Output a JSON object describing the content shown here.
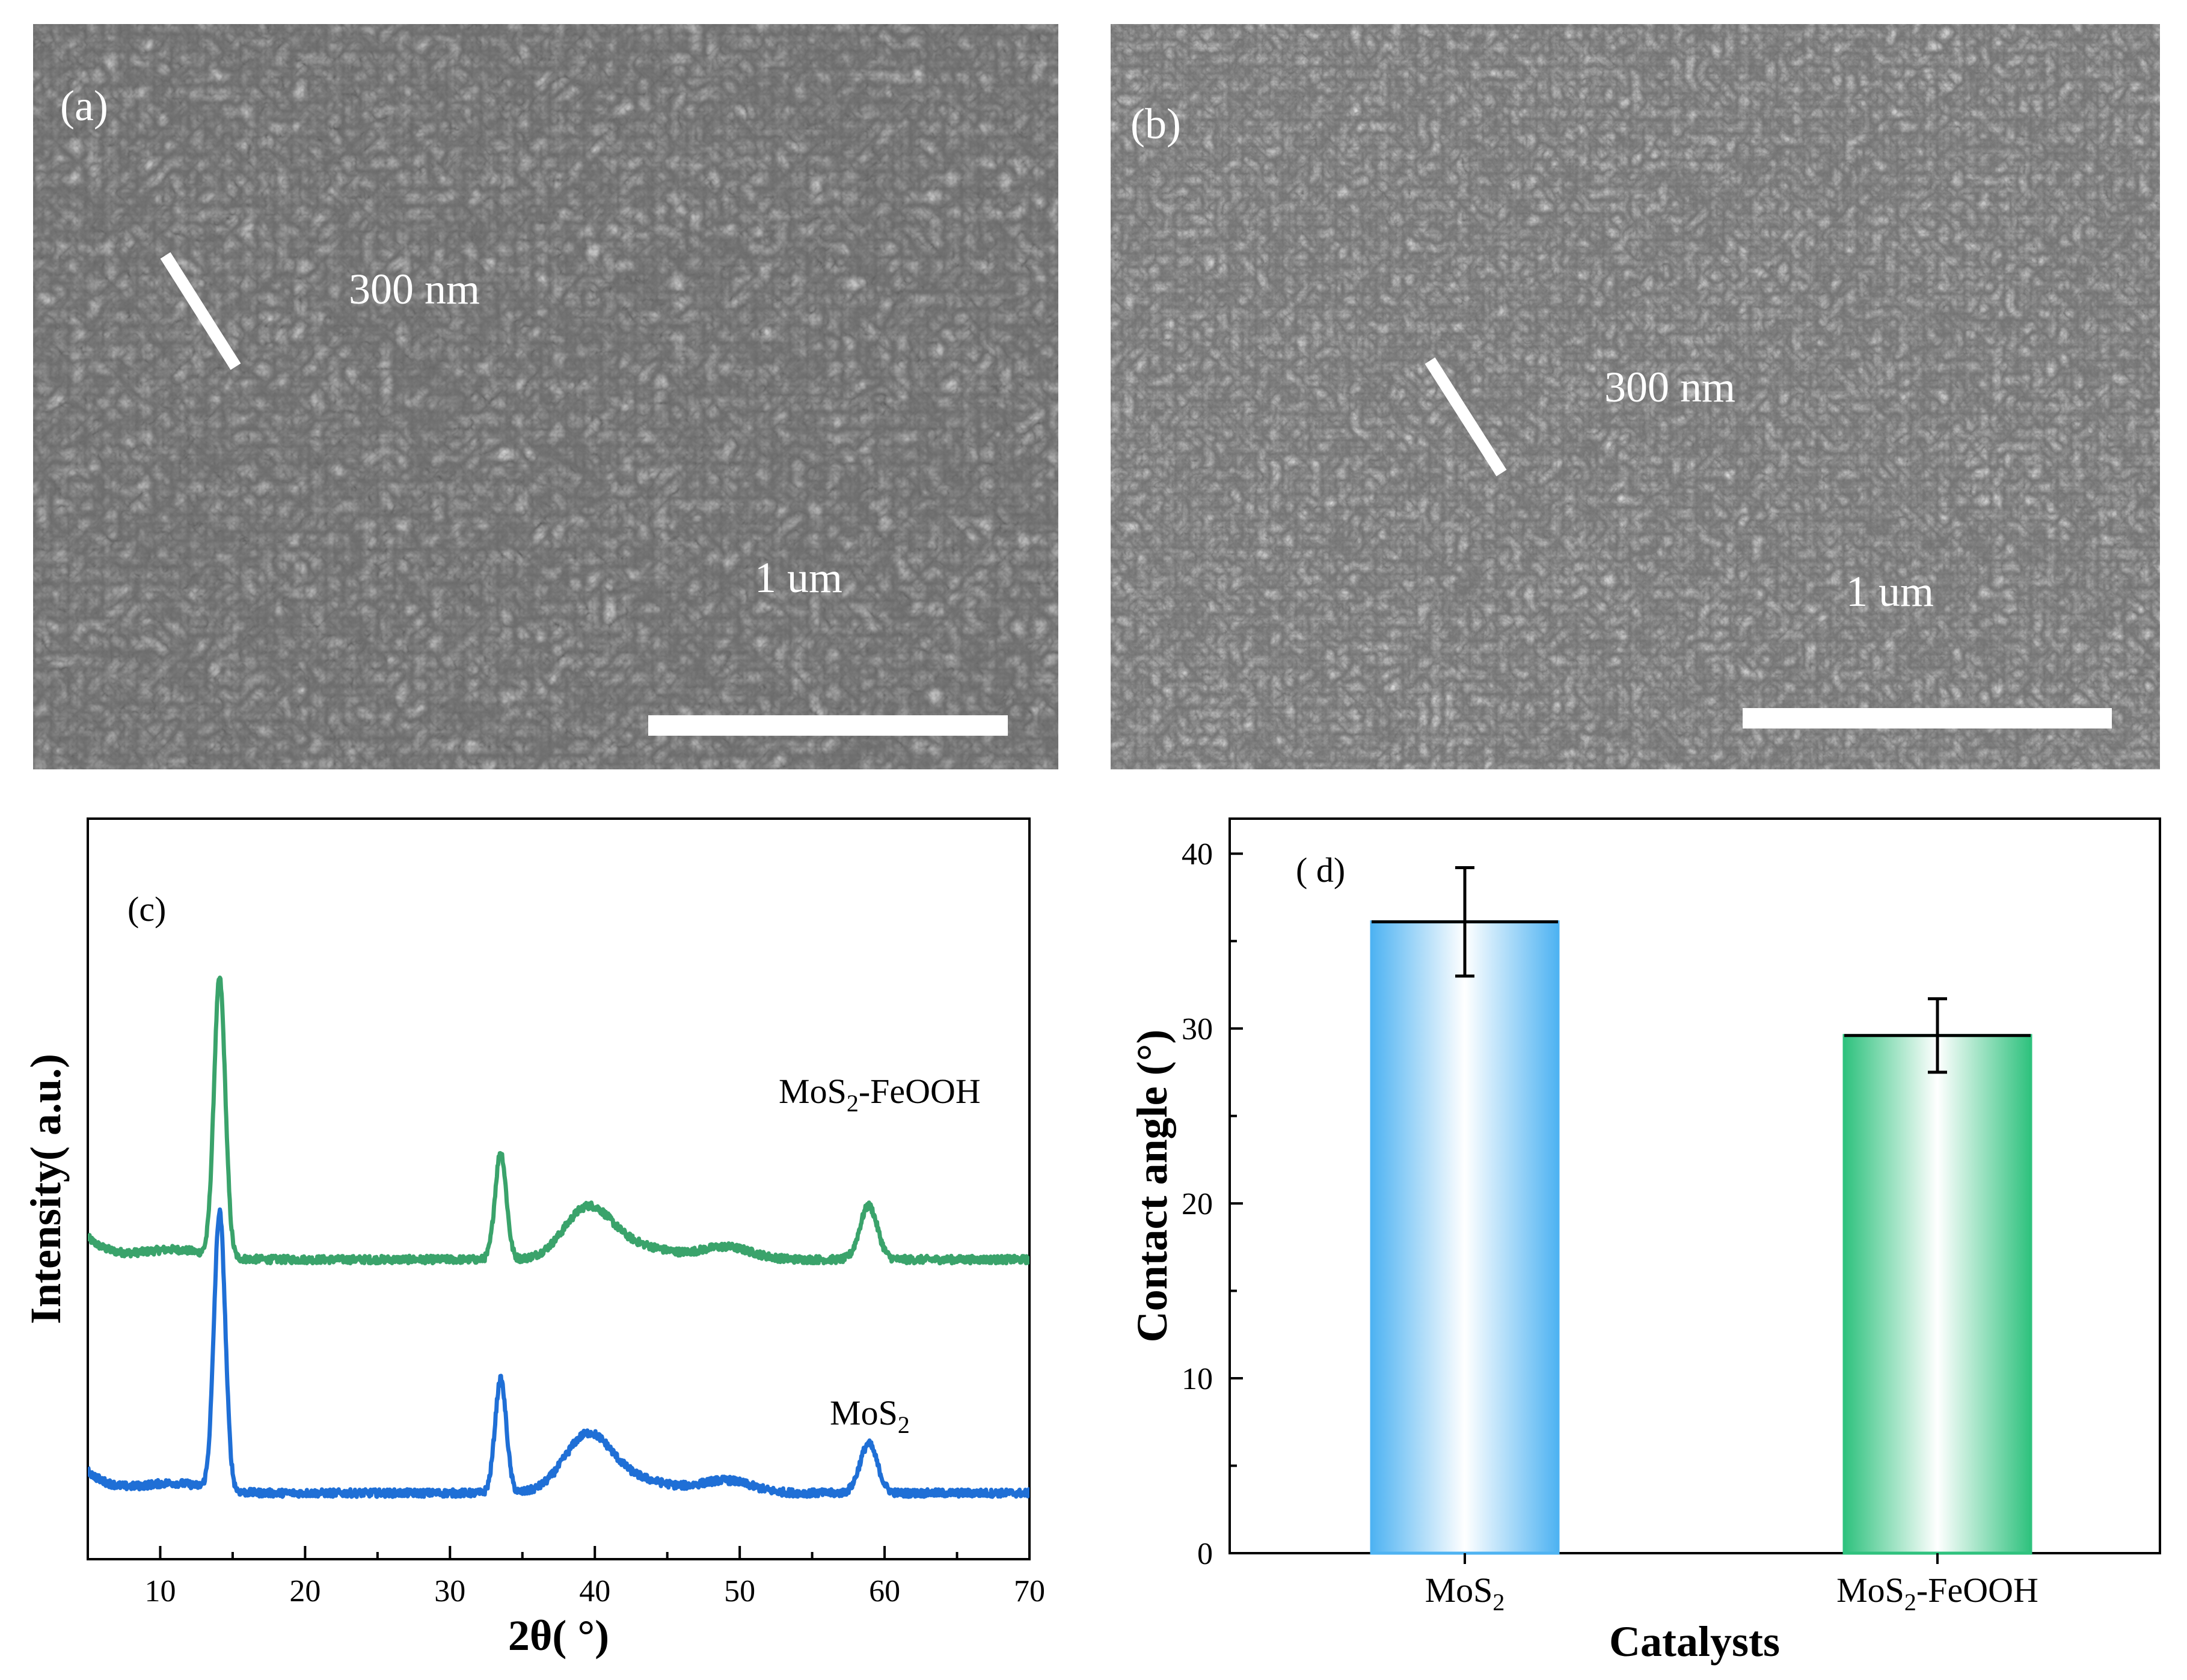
{
  "panels": {
    "a": {
      "label": "(a)",
      "feature_text": "300 nm",
      "scale_text": "1 um"
    },
    "b": {
      "label": "(b)",
      "feature_text": "300 nm",
      "scale_text": "1 um"
    }
  },
  "colors": {
    "green": "#3aa36b",
    "blue": "#1f6fd6",
    "bar_blue": "#4fb3f2",
    "bar_green": "#2fc27e"
  },
  "chart_data": [
    {
      "id": "c",
      "type": "line",
      "panel_label": "(c)",
      "xlabel": "2θ( °)",
      "ylabel": "Intensity( a.u.)",
      "xlim": [
        5,
        70
      ],
      "xticks": [
        "10",
        "20",
        "30",
        "40",
        "50",
        "60",
        "70"
      ],
      "yticks_shown": false,
      "peaks_deg": [
        14.1,
        33.5,
        39.5,
        49.0,
        58.9
      ],
      "series": [
        {
          "name": "MoS2-FeOOH",
          "label_main": "MoS",
          "label_sub": "2",
          "label_tail": "-FeOOH",
          "color": "#3aa36b",
          "offset": 0.37,
          "peak_heights": [
            0.44,
            0.17,
            0.08,
            0.02,
            0.085
          ],
          "baseline": 0.02
        },
        {
          "name": "MoS2",
          "label_main": "MoS",
          "label_sub": "2",
          "label_tail": "",
          "color": "#1f6fd6",
          "offset": 0.0,
          "peak_heights": [
            0.44,
            0.18,
            0.09,
            0.02,
            0.078
          ],
          "baseline": 0.02
        }
      ]
    },
    {
      "id": "d",
      "type": "bar",
      "panel_label": "( d)",
      "xlabel": "Catalysts",
      "ylabel": "Contact angle (°)",
      "ylim": [
        0,
        42
      ],
      "yticks": [
        "0",
        "10",
        "20",
        "30",
        "40"
      ],
      "categories": [
        "MoS2",
        "MoS2-FeOOH"
      ],
      "category_main": [
        "MoS",
        "MoS"
      ],
      "category_sub": [
        "2",
        "2"
      ],
      "category_tail": [
        "",
        "-FeOOH"
      ],
      "values": [
        36.1,
        29.6
      ],
      "errors": [
        3.1,
        2.1
      ],
      "bar_colors": [
        "#4fb3f2",
        "#2fc27e"
      ]
    }
  ]
}
